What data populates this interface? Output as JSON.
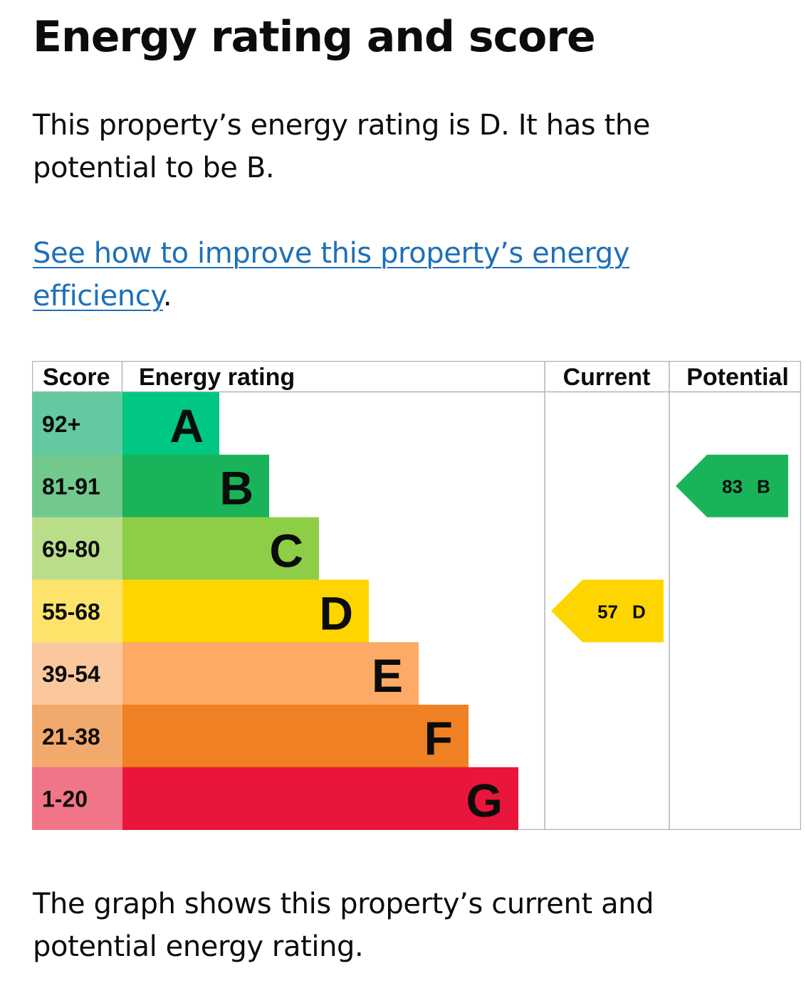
{
  "heading": "Energy rating and score",
  "summary": "This property’s energy rating is D. It has the potential to be B.",
  "improve_link": {
    "text": "See how to improve this property’s energy efficiency",
    "suffix": "."
  },
  "table": {
    "headers": {
      "score": "Score",
      "rating": "Energy rating",
      "current": "Current",
      "potential": "Potential"
    },
    "bands": [
      {
        "letter": "A",
        "range": "92+",
        "color": "#00c781",
        "score_color": "#64c9a0"
      },
      {
        "letter": "B",
        "range": "81-91",
        "color": "#19b459",
        "score_color": "#71c98e"
      },
      {
        "letter": "C",
        "range": "69-80",
        "color": "#8dce46",
        "score_color": "#badd8a"
      },
      {
        "letter": "D",
        "range": "55-68",
        "color": "#ffd500",
        "score_color": "#fde36a"
      },
      {
        "letter": "E",
        "range": "39-54",
        "color": "#fcaa65",
        "score_color": "#fbc89e"
      },
      {
        "letter": "F",
        "range": "21-38",
        "color": "#ef8023",
        "score_color": "#f2a96c"
      },
      {
        "letter": "G",
        "range": "1-20",
        "color": "#e9153b",
        "score_color": "#f07588"
      }
    ],
    "current": {
      "score": "57",
      "letter": "D",
      "band_index": 3,
      "color": "#ffd500"
    },
    "potential": {
      "score": "83",
      "letter": "B",
      "band_index": 1,
      "color": "#19b459"
    }
  },
  "footer": "The graph shows this property’s current and potential energy rating."
}
